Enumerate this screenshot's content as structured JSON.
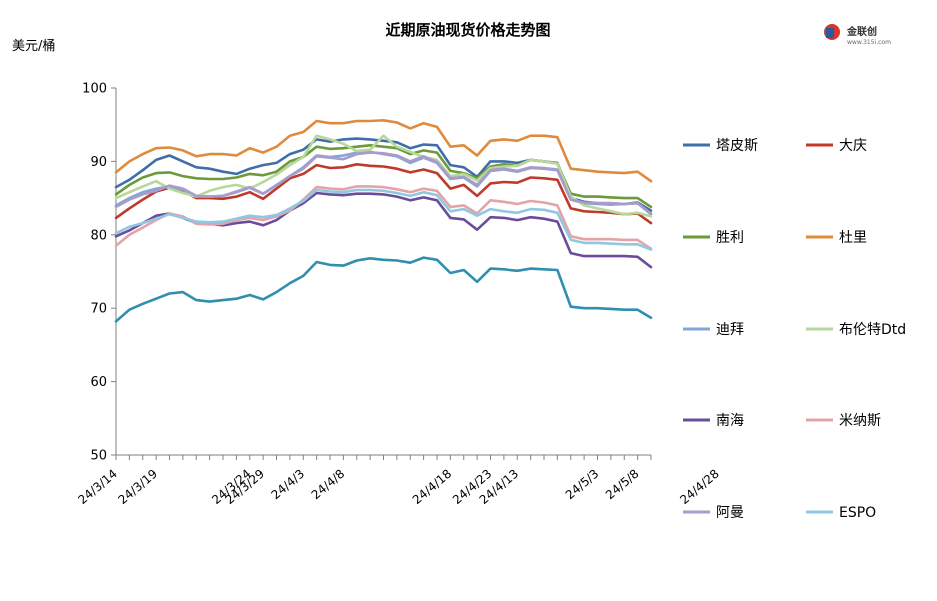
{
  "logo": {
    "name": "金联创",
    "url_text": "www.315i.com"
  },
  "chart_data": {
    "type": "line",
    "title": "近期原油现货价格走势图",
    "ylabel": "美元/桶",
    "xlabel": "",
    "ylim": [
      50,
      100
    ],
    "yticks": [
      50,
      60,
      70,
      80,
      90,
      100
    ],
    "grid": false,
    "legend_position": "right",
    "x": [
      "24/3/14",
      "24/3/15",
      "24/3/18",
      "24/3/19",
      "24/3/20",
      "24/3/21",
      "24/3/22",
      "24/3/25",
      "24/3/26",
      "24/3/27",
      "24/3/28",
      "24/3/29",
      "24/4/1",
      "24/4/2",
      "24/4/3",
      "24/4/4",
      "24/4/5",
      "24/4/8",
      "24/4/9",
      "24/4/10",
      "24/4/11",
      "24/4/12",
      "24/4/15",
      "24/4/16",
      "24/4/17",
      "24/4/18",
      "24/4/19",
      "24/4/22",
      "24/4/23",
      "24/4/24",
      "24/4/25",
      "24/4/26",
      "24/4/29",
      "24/4/30",
      "24/5/1",
      "24/5/2",
      "24/5/3",
      "24/5/6",
      "24/5/7",
      "24/5/8",
      "24/5/9"
    ],
    "x_tick_labels": [
      "24/3/14",
      "24/3/19",
      "24/3/24",
      "24/3/29",
      "24/4/3",
      "24/4/8",
      "24/4/13",
      "24/4/18",
      "24/4/23",
      "24/4/28",
      "24/5/3",
      "24/5/8"
    ],
    "series": [
      {
        "name": "塔皮斯",
        "color": "#3F6EA8",
        "values": [
          86.5,
          87.5,
          88.8,
          90.2,
          90.8,
          90.0,
          89.2,
          89.0,
          88.6,
          88.3,
          89.0,
          89.5,
          89.8,
          91.0,
          91.6,
          93.0,
          92.7,
          93.0,
          93.1,
          93.0,
          92.8,
          92.6,
          91.8,
          92.3,
          92.2,
          89.5,
          89.2,
          87.9,
          90.0,
          90.0,
          89.8,
          90.2,
          90.0,
          89.8,
          85.0,
          84.5,
          84.3,
          84.3,
          84.2,
          84.4,
          83.3
        ]
      },
      {
        "name": "大庆",
        "color": "#C0392B",
        "values": [
          82.3,
          83.6,
          84.8,
          85.9,
          86.4,
          86.0,
          85.0,
          85.0,
          84.9,
          85.2,
          85.8,
          84.9,
          86.3,
          87.7,
          88.3,
          89.5,
          89.1,
          89.2,
          89.6,
          89.4,
          89.3,
          89.0,
          88.5,
          88.9,
          88.4,
          86.3,
          86.8,
          85.3,
          87.0,
          87.2,
          87.1,
          87.8,
          87.7,
          87.5,
          83.6,
          83.2,
          83.1,
          83.0,
          82.8,
          82.9,
          81.6
        ]
      },
      {
        "name": "胜利",
        "color": "#6A9A3A",
        "values": [
          85.5,
          86.8,
          87.8,
          88.4,
          88.5,
          88.0,
          87.7,
          87.6,
          87.6,
          87.8,
          88.3,
          88.1,
          88.6,
          90.0,
          90.6,
          92.0,
          91.7,
          91.8,
          92.0,
          92.2,
          92.0,
          91.8,
          91.0,
          91.5,
          91.2,
          88.7,
          88.4,
          87.7,
          89.3,
          89.6,
          89.4,
          90.2,
          90.0,
          89.7,
          85.6,
          85.2,
          85.2,
          85.1,
          85.0,
          85.0,
          83.8
        ]
      },
      {
        "name": "杜里",
        "color": "#E08A3C",
        "values": [
          88.5,
          90.0,
          91.0,
          91.8,
          91.9,
          91.5,
          90.7,
          91.0,
          91.0,
          90.8,
          91.8,
          91.2,
          92.0,
          93.5,
          94.0,
          95.5,
          95.2,
          95.2,
          95.5,
          95.5,
          95.6,
          95.3,
          94.5,
          95.2,
          94.7,
          92.0,
          92.2,
          90.8,
          92.8,
          93.0,
          92.8,
          93.5,
          93.5,
          93.3,
          89.0,
          88.8,
          88.6,
          88.5,
          88.4,
          88.6,
          87.3
        ]
      },
      {
        "name": "迪拜",
        "color": "#7FA7D4",
        "values": [
          84.0,
          85.0,
          85.8,
          86.3,
          86.6,
          86.1,
          85.2,
          85.2,
          85.3,
          85.8,
          86.4,
          85.6,
          86.8,
          88.0,
          89.2,
          90.8,
          90.6,
          90.8,
          91.2,
          91.3,
          91.0,
          90.7,
          89.8,
          90.5,
          89.8,
          87.6,
          87.8,
          86.6,
          88.7,
          88.9,
          88.6,
          89.1,
          89.0,
          88.8,
          84.8,
          84.3,
          84.2,
          84.1,
          84.2,
          84.3,
          82.8
        ]
      },
      {
        "name": "布伦特Dtd",
        "color": "#B7D89A",
        "values": [
          85.0,
          85.8,
          86.6,
          87.3,
          86.3,
          85.7,
          85.2,
          86.0,
          86.5,
          86.8,
          86.3,
          87.2,
          88.2,
          89.5,
          90.6,
          93.5,
          93.0,
          92.4,
          91.4,
          91.6,
          93.5,
          92.0,
          91.3,
          90.6,
          90.2,
          88.0,
          88.3,
          87.4,
          89.1,
          89.3,
          89.4,
          90.2,
          90.0,
          89.7,
          85.2,
          84.0,
          83.6,
          83.2,
          82.8,
          83.0,
          82.5
        ]
      },
      {
        "name": "南海",
        "color": "#6B4C9A",
        "values": [
          79.8,
          80.6,
          81.6,
          82.6,
          82.9,
          82.3,
          81.6,
          81.5,
          81.3,
          81.6,
          81.8,
          81.3,
          82.0,
          83.3,
          84.3,
          85.7,
          85.5,
          85.4,
          85.6,
          85.6,
          85.5,
          85.2,
          84.7,
          85.1,
          84.7,
          82.3,
          82.1,
          80.7,
          82.4,
          82.3,
          82.0,
          82.4,
          82.2,
          81.8,
          77.5,
          77.1,
          77.1,
          77.1,
          77.1,
          77.0,
          75.6
        ]
      },
      {
        "name": "米纳斯",
        "color": "#E3A3A8",
        "values": [
          78.5,
          80.0,
          81.0,
          82.0,
          82.9,
          82.5,
          81.5,
          81.4,
          81.5,
          82.0,
          82.3,
          82.0,
          82.5,
          83.3,
          84.8,
          86.5,
          86.3,
          86.2,
          86.6,
          86.6,
          86.5,
          86.2,
          85.8,
          86.3,
          86.0,
          83.8,
          84.0,
          82.9,
          84.7,
          84.5,
          84.2,
          84.6,
          84.4,
          84.0,
          79.8,
          79.4,
          79.4,
          79.4,
          79.3,
          79.3,
          78.1
        ]
      },
      {
        "name": "阿曼",
        "color": "#A99BCB",
        "values": [
          83.8,
          84.8,
          85.5,
          86.0,
          86.7,
          86.3,
          85.3,
          85.2,
          85.3,
          85.9,
          86.5,
          85.6,
          86.7,
          88.0,
          89.0,
          90.7,
          90.5,
          90.3,
          91.0,
          91.2,
          91.1,
          90.8,
          90.0,
          90.7,
          89.9,
          87.7,
          87.9,
          86.8,
          88.8,
          89.0,
          88.7,
          89.2,
          89.1,
          88.9,
          84.8,
          84.4,
          84.3,
          84.3,
          84.2,
          84.3,
          82.9
        ]
      },
      {
        "name": "ESPO",
        "color": "#8EC8E3",
        "values": [
          80.2,
          81.1,
          81.6,
          82.2,
          82.8,
          82.3,
          81.8,
          81.7,
          81.8,
          82.2,
          82.6,
          82.4,
          82.7,
          83.6,
          84.6,
          86.1,
          85.9,
          85.8,
          86.1,
          86.1,
          86.0,
          85.7,
          85.3,
          85.8,
          85.4,
          83.2,
          83.5,
          82.6,
          83.5,
          83.2,
          83.0,
          83.5,
          83.4,
          83.0,
          79.3,
          78.9,
          78.9,
          78.8,
          78.7,
          78.7,
          78.0
        ]
      },
      {
        "name": "",
        "color": "#2E8FAE",
        "values": [
          68.2,
          69.8,
          70.6,
          71.3,
          72.0,
          72.2,
          71.1,
          70.9,
          71.1,
          71.3,
          71.8,
          71.2,
          72.2,
          73.4,
          74.4,
          76.3,
          75.9,
          75.8,
          76.5,
          76.8,
          76.6,
          76.5,
          76.2,
          76.9,
          76.6,
          74.8,
          75.2,
          73.6,
          75.4,
          75.3,
          75.1,
          75.4,
          75.3,
          75.2,
          70.2,
          70.0,
          70.0,
          69.9,
          69.8,
          69.8,
          68.7
        ]
      }
    ]
  }
}
